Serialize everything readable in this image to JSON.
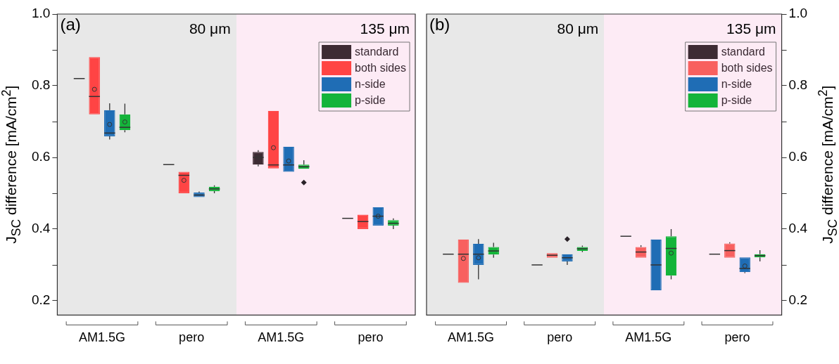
{
  "chart_data": [
    {
      "type": "box",
      "title": "(a)",
      "ylabel": "J$_{SC}$ difference [mA/cm$^{2}$]",
      "annotations": [
        "80 μm",
        "135 μm"
      ],
      "categories": [
        "AM1.5G",
        "pero",
        "AM1.5G",
        "pero"
      ],
      "ylim": [
        0.16,
        1.0
      ],
      "yticks": [
        {
          "value": 0.2,
          "label": "0.2"
        },
        {
          "value": 0.3,
          "label": null
        },
        {
          "value": 0.4,
          "label": "0.4"
        },
        {
          "value": 0.5,
          "label": null
        },
        {
          "value": 0.6,
          "label": "0.6"
        },
        {
          "value": 0.7,
          "label": null
        },
        {
          "value": 0.8,
          "label": "0.8"
        },
        {
          "value": 0.9,
          "label": null
        },
        {
          "value": 1.0,
          "label": "1.0"
        }
      ],
      "grid": false,
      "legend": "top right",
      "series": [
        {
          "name": "standard",
          "color": "#3d2b33",
          "boxes": [
            {
              "low": 0.82,
              "q1": 0.82,
              "median": 0.82,
              "q3": 0.82,
              "high": 0.82
            },
            {
              "low": 0.58,
              "q1": 0.58,
              "median": 0.58,
              "q3": 0.58,
              "high": 0.58
            },
            {
              "low": 0.575,
              "q1": 0.58,
              "median": 0.6,
              "q3": 0.615,
              "high": 0.62,
              "mean": 0.6
            },
            {
              "low": 0.43,
              "q1": 0.43,
              "median": 0.43,
              "q3": 0.43,
              "high": 0.43
            }
          ]
        },
        {
          "name": "both sides",
          "color": "#ff4444",
          "boxes": [
            {
              "low": 0.72,
              "q1": 0.72,
              "median": 0.77,
              "q3": 0.88,
              "high": 0.88,
              "mean": 0.79
            },
            {
              "low": 0.5,
              "q1": 0.5,
              "median": 0.55,
              "q3": 0.56,
              "high": 0.56,
              "mean": 0.536
            },
            {
              "low": 0.569,
              "q1": 0.569,
              "median": 0.579,
              "q3": 0.73,
              "high": 0.73,
              "mean": 0.627
            },
            {
              "low": 0.4,
              "q1": 0.4,
              "median": 0.421,
              "q3": 0.44,
              "high": 0.44
            }
          ]
        },
        {
          "name": "n-side",
          "color": "#1f6db5",
          "boxes": [
            {
              "low": 0.65,
              "q1": 0.659,
              "median": 0.668,
              "q3": 0.732,
              "high": 0.751,
              "mean": 0.692
            },
            {
              "low": 0.489,
              "q1": 0.489,
              "median": 0.495,
              "q3": 0.502,
              "high": 0.505
            },
            {
              "low": 0.56,
              "q1": 0.56,
              "median": 0.579,
              "q3": 0.63,
              "high": 0.63,
              "mean": 0.59
            },
            {
              "low": 0.41,
              "q1": 0.41,
              "median": 0.436,
              "q3": 0.461,
              "high": 0.461,
              "mean": 0.436
            }
          ]
        },
        {
          "name": "p-side",
          "color": "#14b43a",
          "boxes": [
            {
              "low": 0.67,
              "q1": 0.676,
              "median": 0.684,
              "q3": 0.72,
              "high": 0.75,
              "mean": 0.699
            },
            {
              "low": 0.5,
              "q1": 0.506,
              "median": 0.512,
              "q3": 0.518,
              "high": 0.522
            },
            {
              "low": 0.568,
              "q1": 0.568,
              "median": 0.574,
              "q3": 0.58,
              "high": 0.592,
              "outliers": [
                0.53
              ]
            },
            {
              "low": 0.4,
              "q1": 0.41,
              "median": 0.416,
              "q3": 0.425,
              "high": 0.43
            }
          ]
        }
      ]
    },
    {
      "type": "box",
      "title": "(b)",
      "ylabel": "J$_{SC}$ difference [mA/cm$^{2}$]",
      "annotations": [
        "80 μm",
        "135 μm"
      ],
      "categories": [
        "AM1.5G",
        "pero",
        "AM1.5G",
        "pero"
      ],
      "ylim": [
        0.16,
        1.0
      ],
      "yticks": [
        {
          "value": 0.2,
          "label": "0.2"
        },
        {
          "value": 0.3,
          "label": null
        },
        {
          "value": 0.4,
          "label": "0.4"
        },
        {
          "value": 0.5,
          "label": null
        },
        {
          "value": 0.6,
          "label": "0.6"
        },
        {
          "value": 0.7,
          "label": null
        },
        {
          "value": 0.8,
          "label": "0.8"
        },
        {
          "value": 0.9,
          "label": null
        },
        {
          "value": 1.0,
          "label": "1.0"
        }
      ],
      "grid": false,
      "legend": "top right",
      "series": [
        {
          "name": "standard",
          "color": "#3d2b33",
          "boxes": [
            {
              "low": 0.33,
              "q1": 0.33,
              "median": 0.33,
              "q3": 0.33,
              "high": 0.33
            },
            {
              "low": 0.3,
              "q1": 0.3,
              "median": 0.3,
              "q3": 0.3,
              "high": 0.3
            },
            {
              "low": 0.38,
              "q1": 0.38,
              "median": 0.38,
              "q3": 0.38,
              "high": 0.38
            },
            {
              "low": 0.33,
              "q1": 0.33,
              "median": 0.33,
              "q3": 0.33,
              "high": 0.33
            }
          ]
        },
        {
          "name": "both sides",
          "color": "#f8605f",
          "boxes": [
            {
              "low": 0.25,
              "q1": 0.25,
              "median": 0.33,
              "q3": 0.371,
              "high": 0.371,
              "mean": 0.318
            },
            {
              "low": 0.32,
              "q1": 0.32,
              "median": 0.327,
              "q3": 0.333,
              "high": 0.333
            },
            {
              "low": 0.32,
              "q1": 0.32,
              "median": 0.336,
              "q3": 0.35,
              "high": 0.355
            },
            {
              "low": 0.32,
              "q1": 0.32,
              "median": 0.34,
              "q3": 0.36,
              "high": 0.363
            }
          ]
        },
        {
          "name": "n-side",
          "color": "#1f6db5",
          "boxes": [
            {
              "low": 0.26,
              "q1": 0.3,
              "median": 0.33,
              "q3": 0.359,
              "high": 0.372,
              "mean": 0.32
            },
            {
              "low": 0.3,
              "q1": 0.31,
              "median": 0.32,
              "q3": 0.33,
              "high": 0.33,
              "outliers": [
                0.372
              ]
            },
            {
              "low": 0.229,
              "q1": 0.229,
              "median": 0.3,
              "q3": 0.371,
              "high": 0.371
            },
            {
              "low": 0.277,
              "q1": 0.28,
              "median": 0.29,
              "q3": 0.321,
              "high": 0.321,
              "mean": 0.297
            }
          ]
        },
        {
          "name": "p-side",
          "color": "#14b43a",
          "boxes": [
            {
              "low": 0.32,
              "q1": 0.329,
              "median": 0.339,
              "q3": 0.35,
              "high": 0.362
            },
            {
              "low": 0.336,
              "q1": 0.339,
              "median": 0.345,
              "q3": 0.35,
              "high": 0.354
            },
            {
              "low": 0.26,
              "q1": 0.27,
              "median": 0.346,
              "q3": 0.38,
              "high": 0.4,
              "mean": 0.333
            },
            {
              "low": 0.31,
              "q1": 0.321,
              "median": 0.326,
              "q3": 0.33,
              "high": 0.341
            }
          ]
        }
      ]
    }
  ]
}
